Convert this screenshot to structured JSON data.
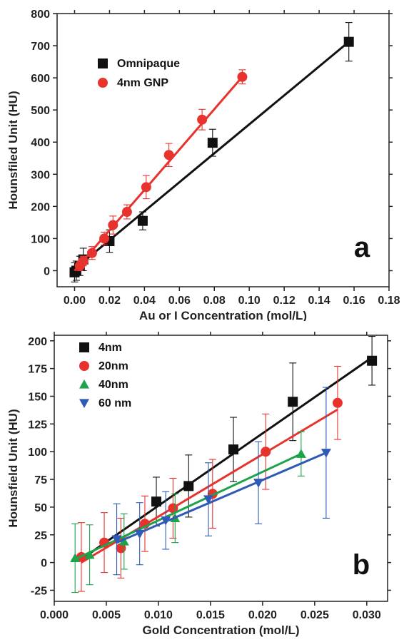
{
  "chart_data": [
    {
      "type": "scatter",
      "panel_label": "a",
      "xlabel": "Au or I Concentration (mol/L)",
      "ylabel": "Hounsfiled Unit (HU)",
      "xlim": [
        -0.01,
        0.18
      ],
      "ylim": [
        -50,
        800
      ],
      "xticks": [
        0.0,
        0.02,
        0.04,
        0.06,
        0.08,
        0.1,
        0.12,
        0.14,
        0.16,
        0.18
      ],
      "xtick_labels": [
        "0.00",
        "0.02",
        "0.04",
        "0.06",
        "0.08",
        "0.10",
        "0.12",
        "0.14",
        "0.16",
        "0.18"
      ],
      "yticks": [
        0,
        100,
        200,
        300,
        400,
        500,
        600,
        700,
        800
      ],
      "ytick_labels": [
        "0",
        "100",
        "200",
        "300",
        "400",
        "500",
        "600",
        "700",
        "800"
      ],
      "legend_position": "top-left",
      "grid": false,
      "series": [
        {
          "name": "Omnipaque",
          "marker": "square",
          "color": "#111111",
          "x": [
            0.0,
            0.001,
            0.003,
            0.005,
            0.02,
            0.039,
            0.079,
            0.157
          ],
          "y": [
            -5,
            0,
            15,
            35,
            92,
            155,
            398,
            712
          ],
          "err": [
            30,
            30,
            30,
            35,
            35,
            28,
            42,
            60
          ],
          "fit": [
            [
              0.0,
              5
            ],
            [
              0.157,
              712
            ]
          ]
        },
        {
          "name": "4nm GNP",
          "marker": "circle",
          "color": "#e8322d",
          "x": [
            0.003,
            0.005,
            0.01,
            0.017,
            0.022,
            0.03,
            0.041,
            0.054,
            0.073,
            0.096
          ],
          "y": [
            15,
            30,
            55,
            100,
            142,
            183,
            260,
            360,
            470,
            603
          ],
          "err": [
            15,
            15,
            20,
            20,
            28,
            22,
            36,
            36,
            32,
            22
          ],
          "fit": [
            [
              0.0,
              0
            ],
            [
              0.096,
              603
            ]
          ]
        }
      ]
    },
    {
      "type": "scatter",
      "panel_label": "b",
      "xlabel": "Gold Concentration (mol/L)",
      "ylabel": "Hounsfield Unit (HU)",
      "xlim": [
        0.0,
        0.032
      ],
      "ylim": [
        -35,
        205
      ],
      "xticks": [
        0.0,
        0.005,
        0.01,
        0.015,
        0.02,
        0.025,
        0.03
      ],
      "xtick_labels": [
        "0.000",
        "0.005",
        "0.010",
        "0.015",
        "0.020",
        "0.025",
        "0.030"
      ],
      "yticks": [
        -25,
        0,
        25,
        50,
        75,
        100,
        125,
        150,
        175,
        200
      ],
      "ytick_labels": [
        "-25",
        "0",
        "25",
        "50",
        "75",
        "100",
        "125",
        "150",
        "175",
        "200"
      ],
      "legend_position": "top-left",
      "grid": false,
      "series": [
        {
          "name": "4nm",
          "marker": "square",
          "color": "#111111",
          "x": [
            0.0098,
            0.0129,
            0.0172,
            0.0229,
            0.0305
          ],
          "y": [
            55,
            69,
            102,
            145,
            182
          ],
          "err": [
            22,
            28,
            29,
            35,
            22
          ],
          "fit": [
            [
              0.0026,
              3
            ],
            [
              0.0305,
              185
            ]
          ]
        },
        {
          "name": "20nm",
          "marker": "circle",
          "color": "#e8322d",
          "x": [
            0.0026,
            0.0048,
            0.0064,
            0.0087,
            0.0114,
            0.0152,
            0.0203,
            0.0272
          ],
          "y": [
            5,
            18,
            13,
            35,
            49,
            62,
            100,
            144
          ],
          "err": [
            31,
            27,
            27,
            25,
            27,
            31,
            34,
            33
          ],
          "fit": [
            [
              0.0026,
              0
            ],
            [
              0.0272,
              138
            ]
          ]
        },
        {
          "name": "40nm",
          "marker": "triangle-up",
          "color": "#1da34a",
          "x": [
            0.002,
            0.0034,
            0.0067,
            0.0116,
            0.0237
          ],
          "y": [
            4,
            7,
            19,
            40,
            98
          ],
          "err": [
            31,
            27,
            25,
            22,
            20
          ],
          "fit": [
            [
              0.002,
              3
            ],
            [
              0.0237,
              98
            ]
          ]
        },
        {
          "name": "60 nm",
          "marker": "triangle-down",
          "color": "#2f5bb7",
          "x": [
            0.006,
            0.0082,
            0.0107,
            0.0148,
            0.0196,
            0.0261
          ],
          "y": [
            21,
            26,
            38,
            57,
            72,
            99
          ],
          "err": [
            32,
            28,
            26,
            33,
            37,
            59
          ],
          "fit": [
            [
              0.006,
              18
            ],
            [
              0.0261,
              99
            ]
          ]
        }
      ]
    }
  ]
}
